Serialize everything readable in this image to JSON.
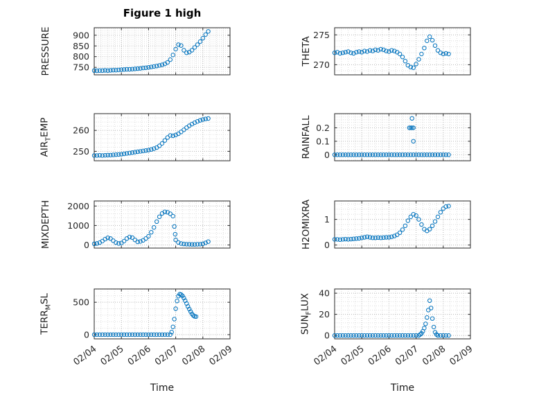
{
  "title": "Figure 1 high",
  "accent_color": "#0072BD",
  "axis_color": "#262626",
  "grid_color": "#b3b3b3",
  "minor_grid_color": "#dedede",
  "marker": "circle-open",
  "x_axis": {
    "label": "Time",
    "ticks": [
      0,
      1,
      2,
      3,
      4,
      5
    ],
    "tick_labels": [
      "02/04",
      "02/05",
      "02/06",
      "02/07",
      "02/08",
      "02/09"
    ],
    "xlim": [
      0,
      5
    ]
  },
  "chart_data": [
    {
      "type": "scatter",
      "name": "PRESSURE",
      "ylabel_parts": [
        "PRESSURE",
        "",
        ""
      ],
      "row": 0,
      "col": 0,
      "yticks": [
        750,
        800,
        850,
        900
      ],
      "ylim": [
        715,
        935
      ],
      "x": [
        0,
        0.1,
        0.2,
        0.3,
        0.4,
        0.5,
        0.6,
        0.7,
        0.8,
        0.9,
        1,
        1.1,
        1.2,
        1.3,
        1.4,
        1.5,
        1.6,
        1.7,
        1.8,
        1.9,
        2,
        2.1,
        2.2,
        2.3,
        2.4,
        2.5,
        2.6,
        2.7,
        2.8,
        2.9,
        3,
        3.1,
        3.2,
        3.3,
        3.4,
        3.5,
        3.6,
        3.7,
        3.8,
        3.9,
        4,
        4.1,
        4.2
      ],
      "y": [
        735,
        734,
        735,
        735,
        736,
        735,
        736,
        737,
        737,
        738,
        739,
        740,
        741,
        741,
        742,
        743,
        744,
        745,
        747,
        748,
        750,
        752,
        754,
        756,
        759,
        762,
        766,
        773,
        786,
        808,
        835,
        856,
        852,
        830,
        818,
        821,
        830,
        843,
        856,
        870,
        886,
        903,
        918
      ]
    },
    {
      "type": "scatter",
      "name": "THETA",
      "ylabel_parts": [
        "THETA",
        "",
        ""
      ],
      "row": 0,
      "col": 1,
      "yticks": [
        270,
        275
      ],
      "ylim": [
        268.3,
        276.2
      ],
      "x": [
        0,
        0.1,
        0.2,
        0.3,
        0.4,
        0.5,
        0.6,
        0.7,
        0.8,
        0.9,
        1,
        1.1,
        1.2,
        1.3,
        1.4,
        1.5,
        1.6,
        1.7,
        1.8,
        1.9,
        2,
        2.1,
        2.2,
        2.3,
        2.4,
        2.5,
        2.6,
        2.7,
        2.8,
        2.9,
        3,
        3.1,
        3.2,
        3.3,
        3.4,
        3.5,
        3.6,
        3.7,
        3.8,
        3.9,
        4,
        4.1,
        4.2
      ],
      "y": [
        272,
        272.1,
        271.9,
        272,
        272.1,
        272.2,
        272,
        271.9,
        272.1,
        272.2,
        272.1,
        272.3,
        272.2,
        272.4,
        272.3,
        272.5,
        272.4,
        272.6,
        272.5,
        272.3,
        272.2,
        272.4,
        272.3,
        272.1,
        271.8,
        271.3,
        270.6,
        269.9,
        269.6,
        269.5,
        270.1,
        270.9,
        271.8,
        272.8,
        274,
        274.7,
        274.1,
        273.2,
        272.4,
        272,
        271.8,
        271.9,
        271.8
      ]
    },
    {
      "type": "scatter",
      "name": "AIR_TEMP",
      "ylabel_parts": [
        "AIR",
        "T",
        "EMP"
      ],
      "row": 1,
      "col": 0,
      "yticks": [
        250,
        260
      ],
      "ylim": [
        245.5,
        268
      ],
      "x": [
        0,
        0.1,
        0.2,
        0.3,
        0.4,
        0.5,
        0.6,
        0.7,
        0.8,
        0.9,
        1,
        1.1,
        1.2,
        1.3,
        1.4,
        1.5,
        1.6,
        1.7,
        1.8,
        1.9,
        2,
        2.1,
        2.2,
        2.3,
        2.4,
        2.5,
        2.6,
        2.7,
        2.8,
        2.9,
        3,
        3.1,
        3.2,
        3.3,
        3.4,
        3.5,
        3.6,
        3.7,
        3.8,
        3.9,
        4,
        4.1,
        4.2
      ],
      "y": [
        248,
        248,
        248.1,
        248,
        248.1,
        248.2,
        248.2,
        248.3,
        248.4,
        248.5,
        248.6,
        248.8,
        249,
        249.2,
        249.4,
        249.6,
        249.8,
        250,
        250.2,
        250.4,
        250.6,
        250.9,
        251.3,
        251.8,
        252.6,
        253.8,
        255.2,
        256.6,
        257.6,
        257.4,
        257.8,
        258.4,
        259.3,
        260.3,
        261.3,
        262.2,
        263,
        263.7,
        264.3,
        264.8,
        265.2,
        265.5,
        265.7
      ]
    },
    {
      "type": "scatter",
      "name": "RAINFALL",
      "ylabel_parts": [
        "RAINFALL",
        "",
        ""
      ],
      "row": 1,
      "col": 1,
      "yticks": [
        0,
        0.1,
        0.2
      ],
      "ylim": [
        -0.045,
        0.305
      ],
      "x": [
        0,
        0.1,
        0.2,
        0.3,
        0.4,
        0.5,
        0.6,
        0.7,
        0.8,
        0.9,
        1,
        1.1,
        1.2,
        1.3,
        1.4,
        1.5,
        1.6,
        1.7,
        1.8,
        1.9,
        2,
        2.1,
        2.2,
        2.3,
        2.4,
        2.5,
        2.6,
        2.7,
        2.8,
        2.9,
        3,
        3.1,
        3.2,
        3.3,
        3.4,
        3.5,
        3.6,
        3.7,
        3.8,
        3.9,
        4,
        4.1,
        4.2,
        2.75,
        2.8,
        2.85,
        2.9,
        2.85,
        2.9
      ],
      "y": [
        0,
        0,
        0,
        0,
        0,
        0,
        0,
        0,
        0,
        0,
        0,
        0,
        0,
        0,
        0,
        0,
        0,
        0,
        0,
        0,
        0,
        0,
        0,
        0,
        0,
        0,
        0,
        0,
        0,
        0,
        0,
        0,
        0,
        0,
        0,
        0,
        0,
        0,
        0,
        0,
        0,
        0,
        0,
        0.2,
        0.2,
        0.2,
        0.2,
        0.27,
        0.1
      ]
    },
    {
      "type": "scatter",
      "name": "MIXDEPTH",
      "ylabel_parts": [
        "MIXDEPTH",
        "",
        ""
      ],
      "row": 2,
      "col": 0,
      "yticks": [
        0,
        1000,
        2000
      ],
      "ylim": [
        -160,
        2260
      ],
      "x": [
        0,
        0.1,
        0.2,
        0.3,
        0.4,
        0.5,
        0.6,
        0.7,
        0.8,
        0.9,
        1,
        1.1,
        1.2,
        1.3,
        1.4,
        1.5,
        1.6,
        1.7,
        1.8,
        1.9,
        2,
        2.1,
        2.2,
        2.3,
        2.4,
        2.5,
        2.6,
        2.7,
        2.8,
        2.9,
        3,
        3.1,
        3.2,
        3.3,
        3.4,
        3.5,
        3.6,
        3.7,
        3.8,
        3.9,
        4,
        4.1,
        4.2,
        2.95,
        2.98
      ],
      "y": [
        60,
        80,
        120,
        200,
        300,
        370,
        330,
        220,
        120,
        80,
        100,
        200,
        330,
        410,
        380,
        260,
        160,
        180,
        240,
        330,
        450,
        650,
        900,
        1200,
        1450,
        1620,
        1700,
        1680,
        1600,
        1480,
        260,
        130,
        70,
        50,
        40,
        35,
        30,
        30,
        35,
        40,
        60,
        110,
        170,
        950,
        550
      ]
    },
    {
      "type": "scatter",
      "name": "H2OMIXRA",
      "ylabel_parts": [
        "H2OMIXRA",
        "",
        ""
      ],
      "row": 2,
      "col": 1,
      "yticks": [
        0,
        1
      ],
      "ylim": [
        -0.12,
        1.72
      ],
      "x": [
        0,
        0.1,
        0.2,
        0.3,
        0.4,
        0.5,
        0.6,
        0.7,
        0.8,
        0.9,
        1,
        1.1,
        1.2,
        1.3,
        1.4,
        1.5,
        1.6,
        1.7,
        1.8,
        1.9,
        2,
        2.1,
        2.2,
        2.3,
        2.4,
        2.5,
        2.6,
        2.7,
        2.8,
        2.9,
        3,
        3.1,
        3.2,
        3.3,
        3.4,
        3.5,
        3.6,
        3.7,
        3.8,
        3.9,
        4,
        4.1,
        4.2
      ],
      "y": [
        0.22,
        0.22,
        0.21,
        0.22,
        0.23,
        0.22,
        0.23,
        0.24,
        0.25,
        0.26,
        0.28,
        0.3,
        0.32,
        0.3,
        0.28,
        0.28,
        0.29,
        0.28,
        0.29,
        0.3,
        0.3,
        0.32,
        0.35,
        0.4,
        0.48,
        0.6,
        0.75,
        0.95,
        1.1,
        1.2,
        1.15,
        1,
        0.8,
        0.62,
        0.55,
        0.62,
        0.75,
        0.92,
        1.1,
        1.28,
        1.42,
        1.5,
        1.52
      ]
    },
    {
      "type": "scatter",
      "name": "TERR_MSL",
      "ylabel_parts": [
        "TERR",
        "M",
        "SL"
      ],
      "row": 3,
      "col": 0,
      "yticks": [
        0,
        500
      ],
      "ylim": [
        -65,
        705
      ],
      "x": [
        0,
        0.1,
        0.2,
        0.3,
        0.4,
        0.5,
        0.6,
        0.7,
        0.8,
        0.9,
        1,
        1.1,
        1.2,
        1.3,
        1.4,
        1.5,
        1.6,
        1.7,
        1.8,
        1.9,
        2,
        2.1,
        2.2,
        2.3,
        2.4,
        2.5,
        2.6,
        2.7,
        2.8,
        2.85,
        2.9,
        2.95,
        3,
        3.05,
        3.1,
        3.15,
        3.2,
        3.25,
        3.3,
        3.35,
        3.4,
        3.45,
        3.5,
        3.55,
        3.6,
        3.65,
        3.7,
        3.75
      ],
      "y": [
        0,
        0,
        0,
        0,
        0,
        0,
        0,
        0,
        0,
        0,
        0,
        0,
        0,
        0,
        0,
        0,
        0,
        0,
        0,
        0,
        0,
        0,
        0,
        0,
        0,
        0,
        0,
        0,
        0,
        40,
        120,
        240,
        400,
        520,
        595,
        625,
        618,
        598,
        565,
        525,
        480,
        435,
        395,
        355,
        320,
        295,
        282,
        278
      ]
    },
    {
      "type": "scatter",
      "name": "SUN_FLUX",
      "ylabel_parts": [
        "SUN",
        "F",
        "LUX"
      ],
      "row": 3,
      "col": 1,
      "yticks": [
        0,
        20,
        40
      ],
      "ylim": [
        -3.2,
        44
      ],
      "x": [
        0,
        0.1,
        0.2,
        0.3,
        0.4,
        0.5,
        0.6,
        0.7,
        0.8,
        0.9,
        1,
        1.1,
        1.2,
        1.3,
        1.4,
        1.5,
        1.6,
        1.7,
        1.8,
        1.9,
        2,
        2.1,
        2.2,
        2.3,
        2.4,
        2.5,
        2.6,
        2.7,
        2.8,
        2.9,
        3,
        3.1,
        3.15,
        3.2,
        3.25,
        3.3,
        3.35,
        3.4,
        3.45,
        3.5,
        3.55,
        3.6,
        3.65,
        3.7,
        3.75,
        3.8,
        3.9,
        4,
        4.1,
        4.2
      ],
      "y": [
        0,
        0,
        0,
        0,
        0,
        0,
        0,
        0,
        0,
        0,
        0,
        0,
        0,
        0,
        0,
        0,
        0,
        0,
        0,
        0,
        0,
        0,
        0,
        0,
        0,
        0,
        0,
        0,
        0,
        0,
        0,
        0,
        1,
        2,
        4,
        7,
        11,
        17,
        24,
        33,
        26,
        16,
        8,
        3,
        1,
        0,
        0,
        0,
        0,
        0
      ]
    }
  ]
}
